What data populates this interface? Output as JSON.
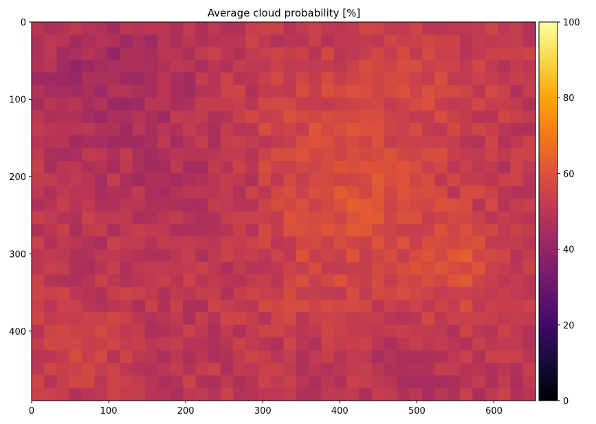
{
  "chart_data": {
    "type": "heatmap",
    "title": "Average cloud probability [%]",
    "xlabel": "",
    "ylabel": "",
    "colormap": "inferno",
    "colorbar": {
      "label": "",
      "range": [
        0,
        100
      ],
      "ticks": [
        0,
        20,
        40,
        60,
        80,
        100
      ]
    },
    "x_range": [
      0,
      654
    ],
    "y_range": [
      0,
      490
    ],
    "y_axis_inverted": true,
    "x_ticks": [
      0,
      100,
      200,
      300,
      400,
      500,
      600
    ],
    "y_ticks": [
      0,
      100,
      200,
      300,
      400
    ],
    "grid_cols": 40,
    "grid_rows": 30,
    "grid": false,
    "value_range_observed": [
      38,
      72
    ],
    "regions": [
      {
        "name": "upper-left",
        "approx_value": 45
      },
      {
        "name": "center-right",
        "approx_value": 60
      },
      {
        "name": "right-middle-peak",
        "approx_value": 67
      },
      {
        "name": "lower-left",
        "approx_value": 55
      }
    ]
  }
}
